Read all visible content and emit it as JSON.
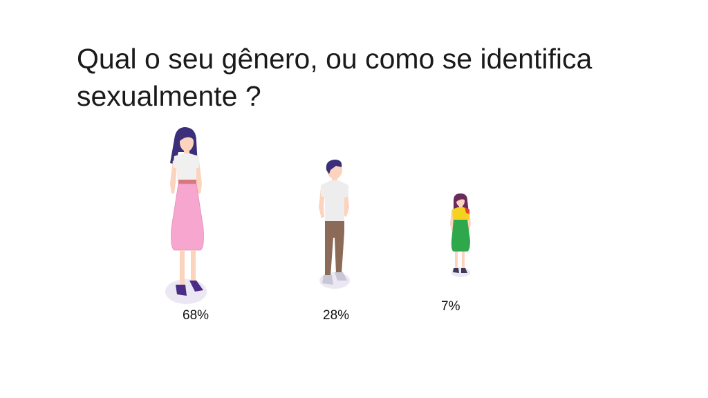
{
  "slide": {
    "title": "Qual o seu gênero, ou como se identifica sexualmente ?"
  },
  "chart_data": {
    "type": "bar",
    "categories": [
      "",
      "",
      ""
    ],
    "values": [
      68,
      28,
      7
    ],
    "value_labels": [
      "68%",
      "28%",
      "7%"
    ],
    "marks": [
      {
        "icon": "woman-pink-skirt-figure-icon",
        "colors": {
          "hair": "#3b2f7a",
          "top": "#f0f0f0",
          "bottom": "#f6a6cf",
          "shoes": "#4a2d87"
        }
      },
      {
        "icon": "man-figure-icon",
        "colors": {
          "hair": "#3b2f7a",
          "top": "#ededed",
          "bottom": "#8b6b57",
          "shoes": "#c9c6d6"
        }
      },
      {
        "icon": "woman-green-skirt-figure-icon",
        "colors": {
          "hair": "#6a2a5a",
          "top": "#f5d21e",
          "bottom": "#2ea84a",
          "shoes": "#3e3a5a"
        }
      }
    ]
  }
}
